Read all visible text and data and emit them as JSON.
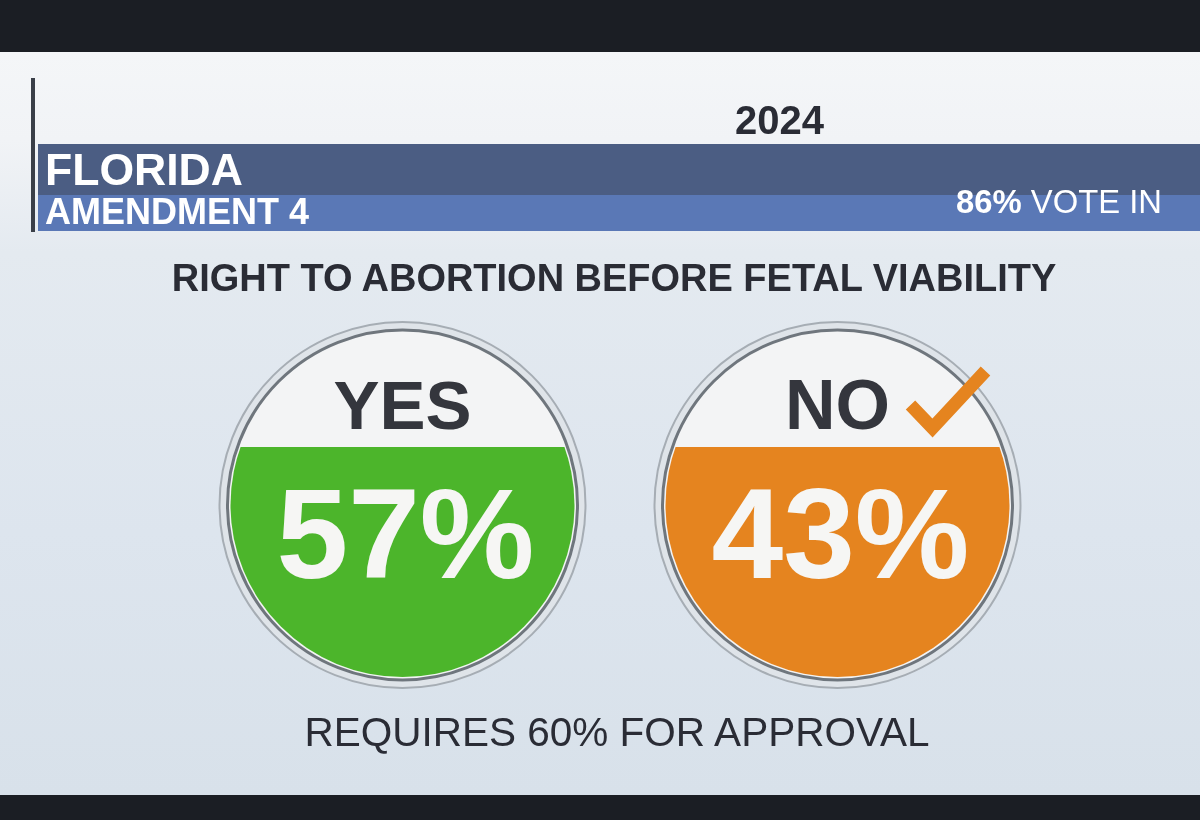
{
  "chart_data": {
    "type": "other",
    "title": "FLORIDA",
    "subtitle": "AMENDMENT 4",
    "categories": [
      "YES",
      "NO"
    ],
    "values": [
      57,
      43
    ],
    "value_labels": [
      "57%",
      "43%"
    ],
    "colors": [
      "#4cb52b",
      "#e5841f"
    ],
    "annotations": [
      "2024",
      "86% VOTE IN",
      "RIGHT TO ABORTION BEFORE FETAL VIABILITY",
      "REQUIRES 60% FOR APPROVAL"
    ]
  }
}
